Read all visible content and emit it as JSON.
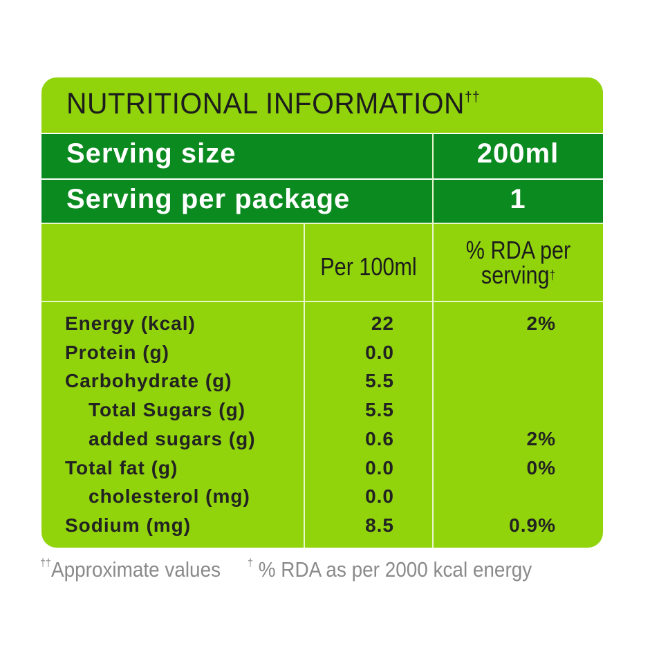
{
  "title": "NUTRITIONAL INFORMATION",
  "title_mark": "††",
  "serving_size": {
    "label": "Serving size",
    "value": "200ml"
  },
  "serving_per_package": {
    "label": "Serving per package",
    "value": "1"
  },
  "columns": {
    "per100": "Per 100ml",
    "rda_line1": "% RDA per",
    "rda_line2": "serving",
    "rda_mark": "†"
  },
  "rows": [
    {
      "name": "Energy (kcal)",
      "per100": "22",
      "rda": "2%",
      "indent": false
    },
    {
      "name": "Protein (g)",
      "per100": "0.0",
      "rda": "",
      "indent": false
    },
    {
      "name": "Carbohydrate (g)",
      "per100": "5.5",
      "rda": "",
      "indent": false
    },
    {
      "name": "Total Sugars (g)",
      "per100": "5.5",
      "rda": "",
      "indent": true
    },
    {
      "name": "added sugars (g)",
      "per100": "0.6",
      "rda": "2%",
      "indent": true
    },
    {
      "name": "Total fat (g)",
      "per100": "0.0",
      "rda": "0%",
      "indent": false
    },
    {
      "name": "cholesterol (mg)",
      "per100": "0.0",
      "rda": "",
      "indent": true
    },
    {
      "name": "Sodium (mg)",
      "per100": "8.5",
      "rda": "0.9%",
      "indent": false
    }
  ],
  "footnote": {
    "mark1": "††",
    "text1": "Approximate values",
    "mark2": "†",
    "text2": "% RDA as per 2000 kcal energy"
  },
  "colors": {
    "light_green": "#91d40c",
    "dark_green": "#0b8a1f"
  }
}
